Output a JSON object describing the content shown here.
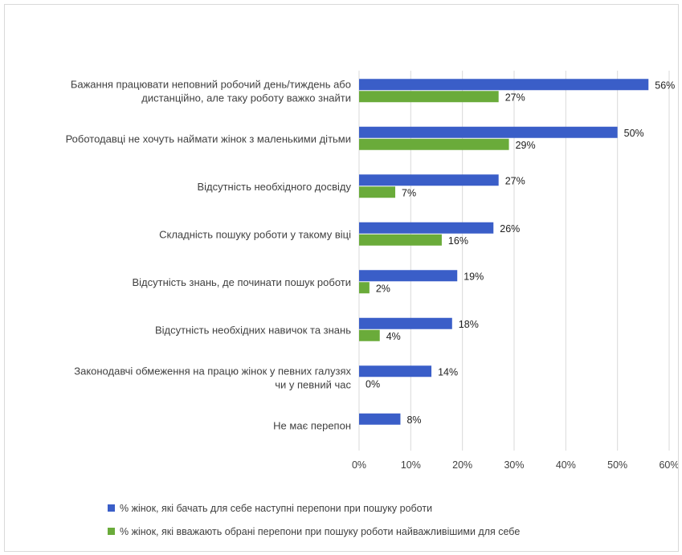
{
  "chart_data": {
    "type": "bar",
    "orientation": "horizontal",
    "categories": [
      [
        "Бажання працювати неповний робочий день/тиждень або",
        "дистанційно, але таку роботу важко знайти"
      ],
      [
        "Роботодавці не хочуть наймати жінок з маленькими дітьми"
      ],
      [
        "Відсутність необхідного досвіду"
      ],
      [
        "Складність пошуку роботи у такому віці"
      ],
      [
        "Відсутність знань, де починати пошук роботи"
      ],
      [
        "Відсутність необхідних навичок та знань"
      ],
      [
        "Законодавчі обмеження на працю жінок у певних галузях",
        "чи у певний час"
      ],
      [
        "Не має перепон"
      ]
    ],
    "series": [
      {
        "name": "% жінок, які бачать для себе наступні перепони при пошуку роботи",
        "color": "#3a5ec8",
        "values": [
          56,
          50,
          27,
          26,
          19,
          18,
          14,
          8
        ],
        "labels": [
          "56%",
          "50%",
          "27%",
          "26%",
          "19%",
          "18%",
          "14%",
          "8%"
        ]
      },
      {
        "name": "% жінок, які вважають обрані перепони при пошуку роботи найважливішими для себе",
        "color": "#6aab3a",
        "values": [
          27,
          29,
          7,
          16,
          2,
          4,
          0,
          null
        ],
        "labels": [
          "27%",
          "29%",
          "7%",
          "16%",
          "2%",
          "4%",
          "0%",
          ""
        ]
      }
    ],
    "xlim": [
      0,
      60
    ],
    "xticks": [
      0,
      10,
      20,
      30,
      40,
      50,
      60
    ],
    "xtick_labels": [
      "0%",
      "10%",
      "20%",
      "30%",
      "40%",
      "50%",
      "60%"
    ],
    "grid": "vertical",
    "legend": "bottom"
  }
}
